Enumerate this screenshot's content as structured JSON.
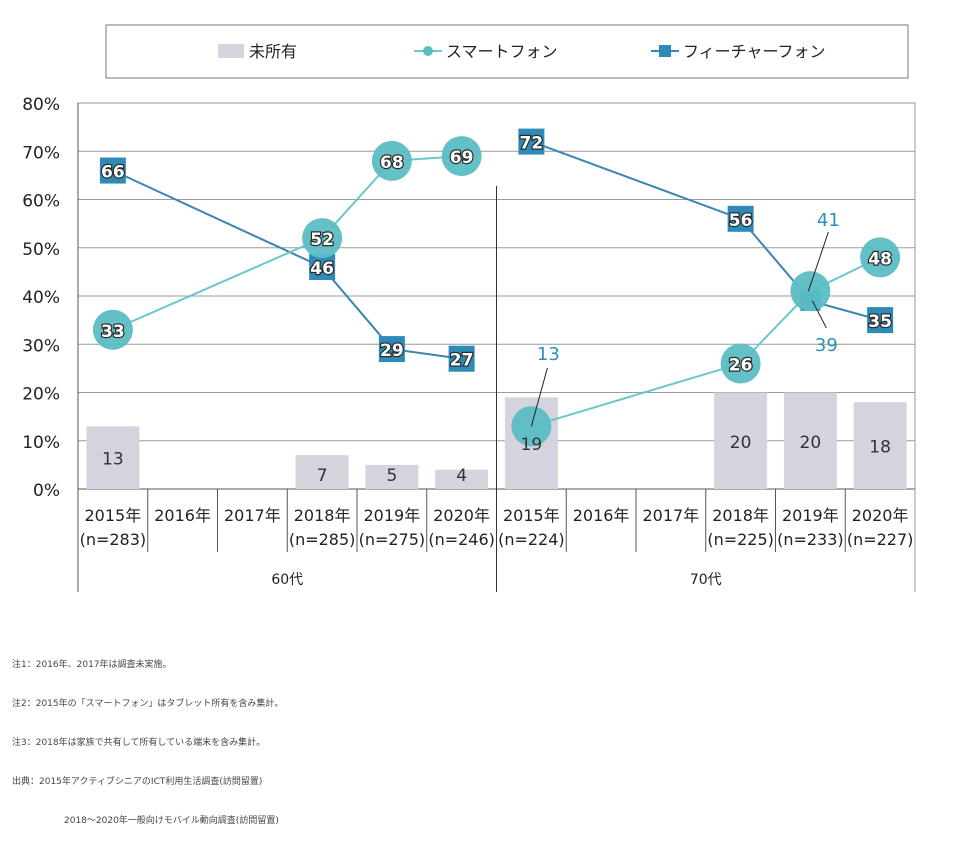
{
  "chart_data": {
    "type": "bar+line",
    "groups": [
      {
        "name": "60代",
        "years": [
          "2015年",
          "2016年",
          "2017年",
          "2018年",
          "2019年",
          "2020年"
        ],
        "n": [
          "(n=283)",
          "",
          "",
          "(n=285)",
          "(n=275)",
          "(n=246)"
        ],
        "not_owned": [
          13,
          null,
          null,
          7,
          5,
          4
        ],
        "smartphone": [
          33,
          null,
          null,
          52,
          68,
          69
        ],
        "feature_phone": [
          66,
          null,
          null,
          46,
          29,
          27
        ]
      },
      {
        "name": "70代",
        "years": [
          "2015年",
          "2016年",
          "2017年",
          "2018年",
          "2019年",
          "2020年"
        ],
        "n": [
          "(n=224)",
          "",
          "",
          "(n=225)",
          "(n=233)",
          "(n=227)"
        ],
        "not_owned": [
          19,
          null,
          null,
          20,
          20,
          18
        ],
        "smartphone": [
          13,
          null,
          null,
          26,
          41,
          48
        ],
        "feature_phone": [
          72,
          null,
          null,
          56,
          39,
          35
        ]
      }
    ],
    "legend": [
      "未所有",
      "スマートフォン",
      "フィーチャーフォン"
    ],
    "legend_position": "top",
    "y_ticks": [
      "80%",
      "70%",
      "60%",
      "50%",
      "40%",
      "30%",
      "20%",
      "10%",
      "0%"
    ],
    "ylim": [
      0,
      80
    ],
    "grid": true,
    "colors": {
      "not_owned": "#d4d3de",
      "smartphone": "#5bbdc4",
      "smartphone_line": "#6cc6cc",
      "feature_phone": "#2e8bb8",
      "feature_phone_line": "#3a86b0",
      "callout_text": "#2e8fb6"
    }
  },
  "notes": [
    "注1：2016年、2017年は調査未実施。",
    "注2：2015年の「スマートフォン」はタブレット所有を含み集計。",
    "注3：2018年は家族で共有して所有している端末を含み集計。"
  ],
  "source": [
    "出典：2015年アクティブシニアのICT利用生活調査(訪問留置)",
    "2018～2020年一般向けモバイル動向調査(訪問留置)"
  ]
}
